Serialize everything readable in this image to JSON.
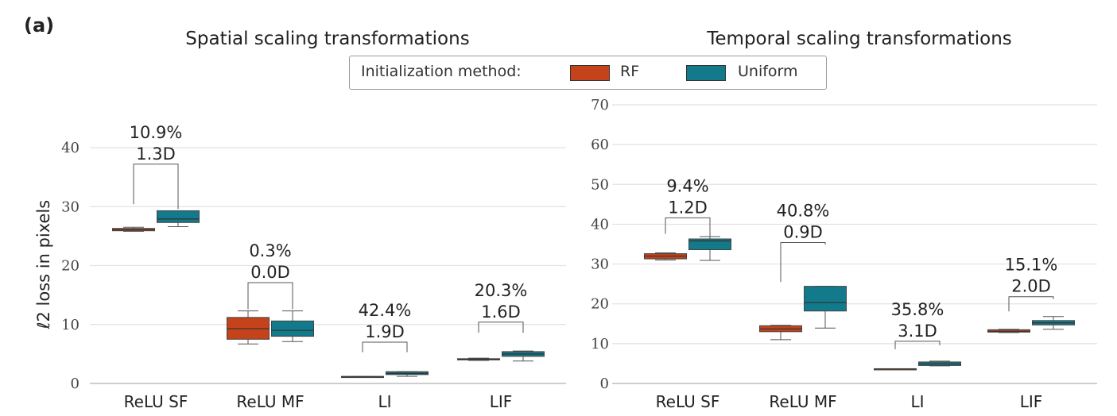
{
  "figure": {
    "panel_label": "(a)",
    "legend": {
      "title": "Initialization method:",
      "entries": [
        {
          "name": "RF",
          "color": "#c4431b"
        },
        {
          "name": "Uniform",
          "color": "#127a8a"
        }
      ]
    }
  },
  "chart_data": [
    {
      "type": "box",
      "title": "Spatial scaling transformations",
      "ylabel": "ℓ2 loss in pixels",
      "xlabel": "",
      "ylim": [
        0,
        42
      ],
      "yticks": [
        0,
        10,
        20,
        30,
        40
      ],
      "grid": true,
      "categories": [
        "ReLU SF",
        "ReLU MF",
        "LI",
        "LIF"
      ],
      "series": [
        {
          "name": "RF",
          "color": "#c4431b",
          "boxes": [
            {
              "whislo": 25.8,
              "q1": 25.9,
              "med": 26.1,
              "q3": 26.3,
              "whishi": 26.5
            },
            {
              "whislo": 6.7,
              "q1": 7.5,
              "med": 9.3,
              "q3": 11.2,
              "whishi": 12.3
            },
            {
              "whislo": 1.1,
              "q1": 1.1,
              "med": 1.15,
              "q3": 1.2,
              "whishi": 1.2
            },
            {
              "whislo": 3.9,
              "q1": 4.0,
              "med": 4.1,
              "q3": 4.2,
              "whishi": 4.3
            }
          ]
        },
        {
          "name": "Uniform",
          "color": "#127a8a",
          "boxes": [
            {
              "whislo": 26.6,
              "q1": 27.3,
              "med": 27.9,
              "q3": 29.3,
              "whishi": 29.3
            },
            {
              "whislo": 7.1,
              "q1": 8.0,
              "med": 9.0,
              "q3": 10.6,
              "whishi": 12.3
            },
            {
              "whislo": 1.2,
              "q1": 1.5,
              "med": 1.7,
              "q3": 2.0,
              "whishi": 2.0
            },
            {
              "whislo": 3.8,
              "q1": 4.6,
              "med": 5.0,
              "q3": 5.4,
              "whishi": 5.5
            }
          ]
        }
      ],
      "annotations": [
        {
          "pct": "10.9%",
          "d": "1.3D",
          "left_y": 30.4,
          "right_y": 29.6,
          "bracket_y": 37.2
        },
        {
          "pct": "0.3%",
          "d": "0.0D",
          "left_y": 12.6,
          "right_y": 12.6,
          "bracket_y": 17.1
        },
        {
          "pct": "42.4%",
          "d": "1.9D",
          "left_y": 5.3,
          "right_y": 5.3,
          "bracket_y": 7.0
        },
        {
          "pct": "20.3%",
          "d": "1.6D",
          "left_y": 8.6,
          "right_y": 8.6,
          "bracket_y": 10.4
        }
      ]
    },
    {
      "type": "box",
      "title": "Temporal scaling transformations",
      "ylabel": "",
      "xlabel": "",
      "ylim": [
        0,
        72
      ],
      "yticks": [
        0,
        10,
        20,
        30,
        40,
        50,
        60,
        70
      ],
      "grid": true,
      "categories": [
        "ReLU SF",
        "ReLU MF",
        "LI",
        "LIF"
      ],
      "series": [
        {
          "name": "RF",
          "color": "#c4431b",
          "boxes": [
            {
              "whislo": 31.0,
              "q1": 31.3,
              "med": 32.0,
              "q3": 32.6,
              "whishi": 32.8
            },
            {
              "whislo": 11.0,
              "q1": 13.0,
              "med": 13.7,
              "q3": 14.5,
              "whishi": 14.6
            },
            {
              "whislo": 3.6,
              "q1": 3.6,
              "med": 3.65,
              "q3": 3.7,
              "whishi": 3.7
            },
            {
              "whislo": 12.8,
              "q1": 12.9,
              "med": 13.1,
              "q3": 13.5,
              "whishi": 13.6
            }
          ]
        },
        {
          "name": "Uniform",
          "color": "#127a8a",
          "boxes": [
            {
              "whislo": 30.9,
              "q1": 33.6,
              "med": 35.8,
              "q3": 36.3,
              "whishi": 36.9
            },
            {
              "whislo": 13.9,
              "q1": 18.2,
              "med": 20.3,
              "q3": 24.4,
              "whishi": 24.4
            },
            {
              "whislo": 4.4,
              "q1": 4.5,
              "med": 4.9,
              "q3": 5.4,
              "whishi": 5.6
            },
            {
              "whislo": 13.6,
              "q1": 14.7,
              "med": 15.2,
              "q3": 15.8,
              "whishi": 16.8
            }
          ]
        }
      ],
      "annotations": [
        {
          "pct": "9.4%",
          "d": "1.2D",
          "left_y": 37.6,
          "right_y": 36.9,
          "bracket_y": 41.6
        },
        {
          "pct": "40.8%",
          "d": "0.9D",
          "left_y": 25.5,
          "right_y": 34.9,
          "bracket_y": 35.4
        },
        {
          "pct": "35.8%",
          "d": "3.1D",
          "left_y": 8.6,
          "right_y": 9.6,
          "bracket_y": 10.6
        },
        {
          "pct": "15.1%",
          "d": "2.0D",
          "left_y": 18.1,
          "right_y": 21.2,
          "bracket_y": 21.8
        }
      ]
    }
  ]
}
